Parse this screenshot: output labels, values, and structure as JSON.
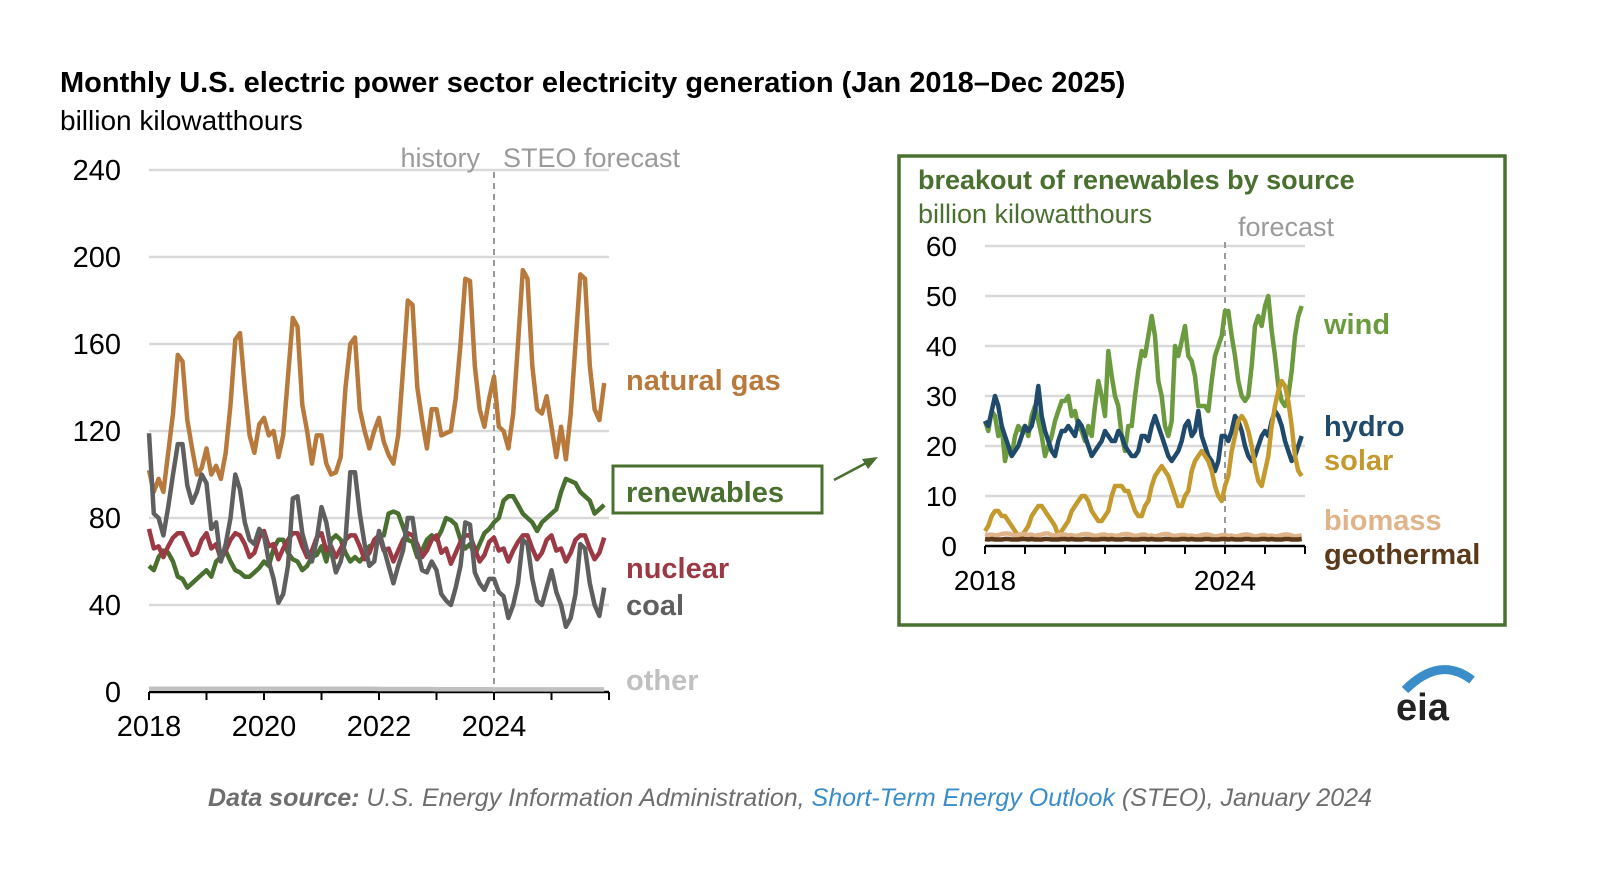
{
  "chart_data": [
    {
      "type": "line",
      "title": "Monthly U.S. electric power sector electricity generation (Jan 2018–Dec 2025)",
      "subtitle": "billion kilowatthours",
      "x_start": "Jan 2018",
      "x_end": "Dec 2025",
      "x_frequency": "monthly",
      "xticks": [
        "2018",
        "2020",
        "2022",
        "2024"
      ],
      "yticks": [
        0,
        40,
        80,
        120,
        160,
        200,
        240
      ],
      "ylim": [
        0,
        240
      ],
      "grid": true,
      "annotations": {
        "history": "history",
        "forecast": "STEO forecast",
        "forecast_start": "Jan 2024"
      },
      "series": [
        {
          "name": "natural gas",
          "color": "#b87a3c",
          "values": [
            102,
            92,
            98,
            92,
            110,
            128,
            155,
            152,
            125,
            112,
            100,
            103,
            112,
            100,
            104,
            98,
            110,
            132,
            162,
            165,
            140,
            118,
            110,
            123,
            126,
            118,
            120,
            108,
            118,
            145,
            172,
            168,
            132,
            120,
            105,
            118,
            118,
            105,
            100,
            101,
            108,
            140,
            160,
            163,
            130,
            120,
            112,
            120,
            126,
            115,
            109,
            105,
            118,
            148,
            180,
            178,
            140,
            125,
            112,
            130,
            130,
            118,
            119,
            120,
            135,
            160,
            190,
            189,
            150,
            130,
            122,
            135,
            145,
            122,
            120,
            112,
            128,
            160,
            194,
            190,
            150,
            130,
            128,
            136,
            122,
            108,
            122,
            107,
            128,
            160,
            192,
            190,
            150,
            130,
            125,
            142
          ]
        },
        {
          "name": "renewables",
          "color": "#4a7030",
          "values": [
            58,
            56,
            62,
            65,
            64,
            60,
            53,
            52,
            48,
            50,
            52,
            54,
            56,
            53,
            60,
            62,
            65,
            60,
            56,
            55,
            53,
            53,
            55,
            57,
            60,
            58,
            66,
            70,
            70,
            64,
            61,
            60,
            56,
            58,
            62,
            63,
            67,
            60,
            70,
            72,
            70,
            64,
            60,
            62,
            60,
            63,
            67,
            68,
            72,
            72,
            82,
            83,
            82,
            76,
            70,
            69,
            62,
            65,
            70,
            72,
            70,
            74,
            80,
            79,
            77,
            70,
            66,
            68,
            63,
            68,
            73,
            75,
            78,
            80,
            88,
            90,
            90,
            86,
            82,
            80,
            78,
            74,
            78,
            80,
            82,
            84,
            92,
            98,
            97,
            96,
            92,
            90,
            88,
            82,
            84,
            86
          ]
        },
        {
          "name": "nuclear",
          "color": "#9b3a45",
          "values": [
            75,
            66,
            67,
            62,
            67,
            71,
            73,
            73,
            68,
            63,
            64,
            70,
            73,
            66,
            68,
            61,
            65,
            70,
            73,
            72,
            68,
            62,
            64,
            71,
            74,
            67,
            68,
            61,
            66,
            70,
            73,
            73,
            67,
            62,
            65,
            71,
            73,
            65,
            67,
            62,
            66,
            70,
            72,
            72,
            67,
            61,
            64,
            70,
            72,
            65,
            66,
            60,
            65,
            70,
            73,
            72,
            68,
            62,
            65,
            70,
            72,
            64,
            66,
            59,
            64,
            69,
            72,
            72,
            66,
            60,
            63,
            69,
            71,
            65,
            66,
            60,
            65,
            69,
            72,
            72,
            66,
            61,
            64,
            70,
            72,
            65,
            66,
            60,
            64,
            70,
            72,
            72,
            66,
            61,
            64,
            71
          ]
        },
        {
          "name": "coal",
          "color": "#5f5f5f",
          "values": [
            119,
            82,
            80,
            72,
            85,
            100,
            114,
            114,
            95,
            87,
            92,
            100,
            96,
            75,
            78,
            60,
            68,
            80,
            100,
            93,
            78,
            70,
            68,
            75,
            72,
            60,
            52,
            41,
            45,
            58,
            89,
            90,
            73,
            65,
            60,
            70,
            85,
            78,
            65,
            55,
            60,
            70,
            101,
            101,
            82,
            68,
            58,
            60,
            74,
            66,
            58,
            50,
            58,
            65,
            80,
            80,
            65,
            56,
            55,
            60,
            56,
            45,
            42,
            40,
            48,
            58,
            78,
            77,
            55,
            50,
            47,
            52,
            52,
            46,
            44,
            34,
            40,
            50,
            70,
            68,
            52,
            42,
            40,
            48,
            56,
            46,
            40,
            30,
            34,
            45,
            68,
            66,
            50,
            40,
            35,
            48
          ]
        },
        {
          "name": "other",
          "color": "#c0c0c0",
          "values": [
            1.5,
            1.5,
            1.5,
            1.5,
            1.5,
            1.5,
            1.5,
            1.5,
            1.5,
            1.5,
            1.5,
            1.5,
            1.5,
            1.5,
            1.5,
            1.5,
            1.5,
            1.5,
            1.5,
            1.5,
            1.5,
            1.5,
            1.5,
            1.5,
            1.5,
            1.5,
            1.5,
            1.5,
            1.5,
            1.5,
            1.5,
            1.5,
            1.5,
            1.5,
            1.5,
            1.5,
            1.5,
            1.5,
            1.5,
            1.5,
            1.5,
            1.5,
            1.5,
            1.5,
            1.5,
            1.5,
            1.5,
            1.5,
            1.4,
            1.4,
            1.4,
            1.4,
            1.4,
            1.4,
            1.4,
            1.4,
            1.4,
            1.4,
            1.4,
            1.4,
            1.3,
            1.3,
            1.3,
            1.3,
            1.3,
            1.3,
            1.3,
            1.3,
            1.3,
            1.3,
            1.3,
            1.3,
            1.2,
            1.2,
            1.2,
            1.2,
            1.2,
            1.2,
            1.2,
            1.2,
            1.2,
            1.2,
            1.2,
            1.2,
            1.2,
            1.2,
            1.2,
            1.2,
            1.2,
            1.2,
            1.2,
            1.2,
            1.2,
            1.2,
            1.2,
            1.2
          ]
        }
      ],
      "callout_label": "renewables"
    },
    {
      "type": "line",
      "title": "breakout of renewables by source",
      "subtitle": "billion kilowatthours",
      "x_start": "Jan 2018",
      "x_end": "Dec 2025",
      "x_frequency": "monthly",
      "xticks": [
        "2018",
        "2024"
      ],
      "yticks": [
        0,
        10,
        20,
        30,
        40,
        50,
        60
      ],
      "ylim": [
        0,
        60
      ],
      "grid": true,
      "annotations": {
        "forecast": "forecast",
        "forecast_start": "Jan 2024"
      },
      "series": [
        {
          "name": "wind",
          "color": "#6b9b3e",
          "values": [
            25,
            23,
            27,
            26,
            22,
            24,
            17,
            20,
            18,
            22,
            24,
            23,
            24,
            22,
            26,
            28,
            25,
            22,
            18,
            20,
            22,
            25,
            27,
            29,
            29,
            30,
            26,
            27,
            24,
            23,
            21,
            24,
            22,
            28,
            33,
            30,
            26,
            39,
            34,
            30,
            28,
            22,
            19,
            24,
            24,
            30,
            35,
            39,
            38,
            42,
            46,
            42,
            33,
            30,
            24,
            22,
            25,
            40,
            38,
            41,
            44,
            38,
            37,
            34,
            28,
            28,
            28,
            27,
            33,
            38,
            40,
            42,
            47,
            47,
            42,
            38,
            33,
            30,
            29,
            30,
            36,
            44,
            46,
            44,
            48,
            50,
            43,
            38,
            32,
            29,
            28,
            30,
            35,
            42,
            46,
            48
          ]
        },
        {
          "name": "hydro",
          "color": "#1f4a6b",
          "values": [
            25,
            24,
            27,
            30,
            28,
            24,
            22,
            20,
            18,
            19,
            20,
            22,
            24,
            23,
            24,
            27,
            32,
            26,
            23,
            21,
            19,
            18,
            21,
            23,
            23,
            24,
            23,
            22,
            25,
            24,
            22,
            20,
            18,
            19,
            20,
            21,
            23,
            22,
            21,
            21,
            23,
            22,
            20,
            19,
            18,
            18,
            19,
            22,
            22,
            21,
            24,
            26,
            24,
            22,
            20,
            18,
            17,
            18,
            19,
            21,
            24,
            25,
            22,
            23,
            27,
            22,
            20,
            18,
            17,
            15,
            17,
            22,
            22,
            21,
            23,
            26,
            25,
            23,
            20,
            18,
            17,
            18,
            20,
            22,
            23,
            22,
            25,
            27,
            26,
            24,
            21,
            19,
            17,
            18,
            20,
            22
          ]
        },
        {
          "name": "solar",
          "color": "#c49a2e",
          "values": [
            3,
            4,
            6,
            7,
            7,
            6,
            6,
            5,
            4,
            3,
            2,
            2,
            3,
            4,
            6,
            7,
            8,
            8,
            7,
            6,
            5,
            4,
            2,
            3,
            4,
            5,
            7,
            8,
            9,
            10,
            10,
            9,
            7,
            6,
            5,
            5,
            6,
            7,
            10,
            12,
            12,
            12,
            11,
            11,
            9,
            7,
            6,
            6,
            8,
            9,
            12,
            14,
            15,
            16,
            15,
            14,
            12,
            10,
            8,
            8,
            10,
            11,
            15,
            17,
            18,
            19,
            18,
            17,
            15,
            12,
            10,
            9,
            12,
            14,
            19,
            22,
            25,
            26,
            25,
            23,
            20,
            16,
            13,
            12,
            15,
            18,
            24,
            28,
            31,
            33,
            32,
            29,
            24,
            18,
            15,
            14
          ]
        },
        {
          "name": "biomass",
          "color": "#e0b48a",
          "values": [
            2.4,
            2.2,
            2.3,
            2.1,
            2.2,
            2.4,
            2.5,
            2.5,
            2.3,
            2.1,
            2.2,
            2.4,
            2.4,
            2.2,
            2.3,
            2.0,
            2.2,
            2.3,
            2.5,
            2.5,
            2.2,
            2.1,
            2.2,
            2.3,
            2.3,
            2.1,
            2.2,
            2.0,
            2.1,
            2.3,
            2.4,
            2.4,
            2.2,
            2.0,
            2.1,
            2.3,
            2.3,
            2.1,
            2.2,
            2.0,
            2.1,
            2.3,
            2.4,
            2.4,
            2.2,
            2.0,
            2.1,
            2.3,
            2.3,
            2.0,
            2.1,
            1.9,
            2.1,
            2.3,
            2.4,
            2.4,
            2.1,
            2.0,
            2.1,
            2.2,
            2.2,
            2.0,
            2.1,
            1.9,
            2.0,
            2.2,
            2.3,
            2.3,
            2.1,
            1.9,
            2.0,
            2.2,
            2.2,
            2.0,
            2.1,
            1.9,
            2.0,
            2.2,
            2.3,
            2.3,
            2.1,
            1.9,
            2.0,
            2.2,
            2.2,
            2.0,
            2.1,
            1.9,
            2.0,
            2.2,
            2.3,
            2.3,
            2.1,
            1.9,
            2.0,
            2.2
          ]
        },
        {
          "name": "geothermal",
          "color": "#5a3a1a",
          "values": [
            1.4,
            1.3,
            1.4,
            1.3,
            1.3,
            1.3,
            1.4,
            1.4,
            1.3,
            1.3,
            1.3,
            1.4,
            1.4,
            1.3,
            1.4,
            1.3,
            1.3,
            1.3,
            1.4,
            1.4,
            1.3,
            1.3,
            1.3,
            1.4,
            1.4,
            1.3,
            1.4,
            1.3,
            1.3,
            1.3,
            1.4,
            1.4,
            1.3,
            1.3,
            1.3,
            1.4,
            1.4,
            1.3,
            1.4,
            1.3,
            1.3,
            1.3,
            1.4,
            1.4,
            1.3,
            1.3,
            1.3,
            1.4,
            1.4,
            1.3,
            1.4,
            1.3,
            1.3,
            1.3,
            1.4,
            1.4,
            1.3,
            1.3,
            1.3,
            1.4,
            1.4,
            1.3,
            1.4,
            1.3,
            1.3,
            1.3,
            1.4,
            1.4,
            1.3,
            1.3,
            1.3,
            1.4,
            1.4,
            1.3,
            1.4,
            1.3,
            1.3,
            1.3,
            1.4,
            1.4,
            1.3,
            1.3,
            1.3,
            1.4,
            1.4,
            1.3,
            1.4,
            1.3,
            1.3,
            1.3,
            1.4,
            1.4,
            1.3,
            1.3,
            1.3,
            1.4
          ]
        }
      ]
    }
  ],
  "source": {
    "prefix": "Data source:",
    "text_before": " U.S. Energy Information Administration, ",
    "link": "Short-Term Energy Outlook",
    "text_after": " (STEO), January 2024"
  },
  "logo": "eia",
  "colors": {
    "inset_border": "#4a7030",
    "link": "#3a8dc9",
    "annotation": "#9a9a9a"
  }
}
